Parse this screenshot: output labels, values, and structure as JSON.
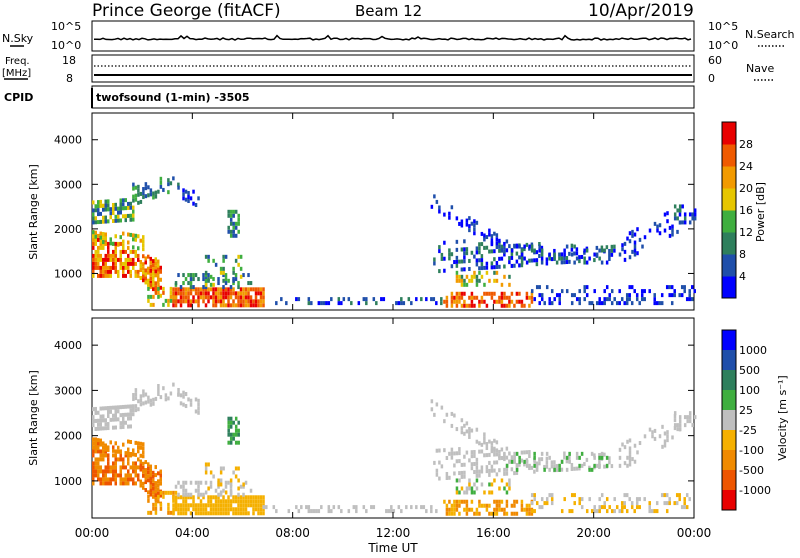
{
  "header": {
    "title": "Prince George (fitACF)",
    "beam": "Beam 12",
    "date": "10/Apr/2019",
    "cpid_label": "CPID",
    "cpid_value": "twofsound (1-min) -3505"
  },
  "strip_labels": {
    "nsky": "N.Sky",
    "nsearch": "N.Search",
    "freq": "Freq.",
    "freq_unit": "[MHz]",
    "nave": "Nave",
    "sky_tick_hi": "10^5",
    "sky_tick_lo": "10^0",
    "freq_tick_hi": "18",
    "freq_tick_lo": "8",
    "nave_tick_hi": "60",
    "nave_tick_lo": "0"
  },
  "colors": {
    "power": [
      "#0000ff",
      "#1f4faa",
      "#2e7f5c",
      "#3fae3f",
      "#e6c600",
      "#f29a00",
      "#ef5a00",
      "#e80000"
    ],
    "velocity": [
      "#0000ff",
      "#1f4faa",
      "#2e7f5c",
      "#3fae3f",
      "#bfbfbf",
      "#f5b000",
      "#f08a00",
      "#ee5500",
      "#e80000"
    ]
  },
  "chart_data": [
    {
      "type": "heatmap",
      "name": "power",
      "ylabel": "Slant Range [km]",
      "xlabel": "Time UT",
      "yticks": [
        "1000",
        "2000",
        "3000",
        "4000"
      ],
      "ylim": [
        180,
        4600
      ],
      "xlim_hours": [
        0,
        24
      ],
      "xticks": [
        "00:00",
        "04:00",
        "08:00",
        "12:00",
        "16:00",
        "20:00",
        "00:00"
      ],
      "colorbar_label": "Power [dB]",
      "colorbar_ticks": [
        "4",
        "8",
        "12",
        "16",
        "20",
        "24",
        "28"
      ]
    },
    {
      "type": "heatmap",
      "name": "velocity",
      "ylabel": "Slant Range [km]",
      "xlabel": "Time UT",
      "yticks": [
        "1000",
        "2000",
        "3000",
        "4000"
      ],
      "ylim": [
        180,
        4600
      ],
      "xlim_hours": [
        0,
        24
      ],
      "xticks": [
        "00:00",
        "04:00",
        "08:00",
        "12:00",
        "16:00",
        "20:00",
        "00:00"
      ],
      "colorbar_label": "Velocity [m s⁻¹]",
      "colorbar_ticks": [
        "1000",
        "500",
        "100",
        "25",
        "-25",
        "-100",
        "-500",
        "-1000"
      ]
    }
  ]
}
